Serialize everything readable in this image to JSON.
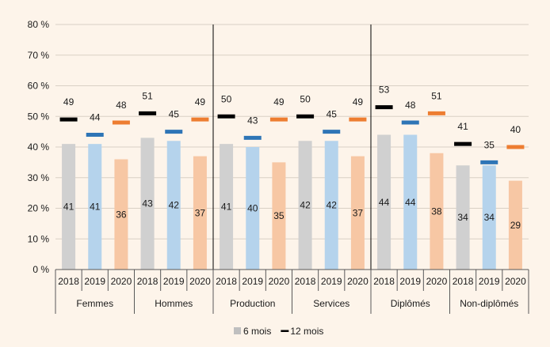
{
  "chart_data": {
    "type": "bar",
    "title": "",
    "xlabel": "",
    "ylabel": "",
    "ylim": [
      0,
      80
    ],
    "yticks": [
      "0 %",
      "10 %",
      "20 %",
      "30 %",
      "40 %",
      "50 %",
      "60 %",
      "70 %",
      "80 %"
    ],
    "groups": [
      {
        "label": "Femmes",
        "years": [
          "2018",
          "2019",
          "2020"
        ],
        "six_months": [
          41,
          41,
          36
        ],
        "twelve_months": [
          49,
          44,
          48
        ]
      },
      {
        "label": "Hommes",
        "years": [
          "2018",
          "2019",
          "2020"
        ],
        "six_months": [
          43,
          42,
          37
        ],
        "twelve_months": [
          51,
          45,
          49
        ]
      },
      {
        "label": "Production",
        "years": [
          "2018",
          "2019",
          "2020"
        ],
        "six_months": [
          41,
          40,
          35
        ],
        "twelve_months": [
          50,
          43,
          49
        ]
      },
      {
        "label": "Services",
        "years": [
          "2018",
          "2019",
          "2020"
        ],
        "six_months": [
          42,
          42,
          37
        ],
        "twelve_months": [
          50,
          45,
          49
        ]
      },
      {
        "label": "Diplômés",
        "years": [
          "2018",
          "2019",
          "2020"
        ],
        "six_months": [
          44,
          44,
          38
        ],
        "twelve_months": [
          53,
          48,
          51
        ]
      },
      {
        "label": "Non-diplômés",
        "years": [
          "2018",
          "2019",
          "2020"
        ],
        "six_months": [
          34,
          34,
          29
        ],
        "twelve_months": [
          41,
          35,
          40
        ]
      }
    ],
    "separators_after_groups": [
      2,
      4
    ],
    "colors": {
      "bars": {
        "2018": "#d0d0d0",
        "2019": "#b5d3ec",
        "2020": "#f7c7a4"
      },
      "markers": {
        "2018": "#000000",
        "2019": "#2e75b6",
        "2020": "#ed7d31"
      },
      "axis": "#595959",
      "grid": "#d9d0c5",
      "separator": "#000000"
    },
    "legend": {
      "position": "bottom",
      "items": [
        {
          "label": "6 mois",
          "swatch": "square",
          "color": "#bfbfbf"
        },
        {
          "label": "12 mois",
          "swatch": "dash",
          "color": "#000000"
        }
      ]
    }
  }
}
